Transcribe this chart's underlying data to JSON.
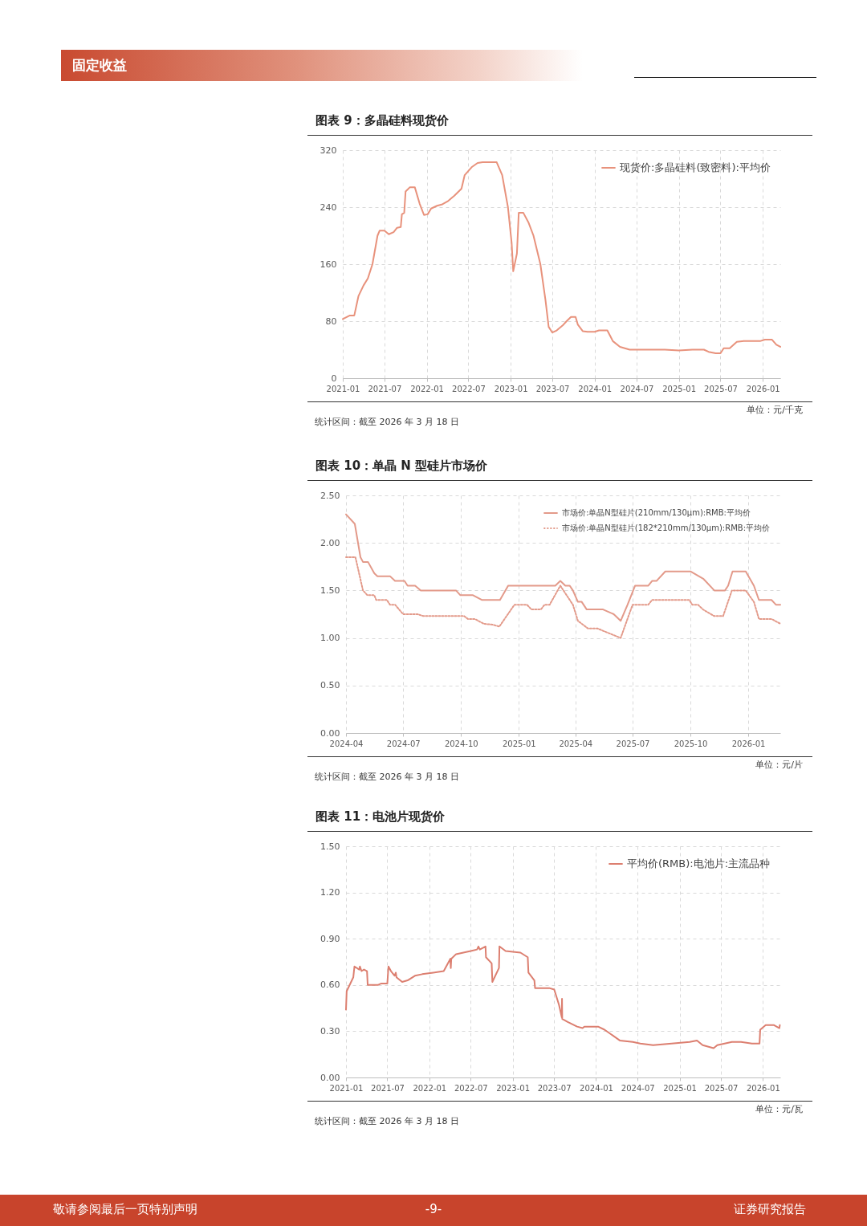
{
  "chart_data": [
    {
      "type": "line",
      "title": "图表 9：多晶硅料现货价",
      "x": [
        "2021-01-01",
        "2021-02-01",
        "2021-02-20",
        "2021-03-10",
        "2021-04-01",
        "2021-04-20",
        "2021-05-10",
        "2021-06-01",
        "2021-06-10",
        "2021-07-01",
        "2021-07-20",
        "2021-08-10",
        "2021-08-25",
        "2021-09-10",
        "2021-09-15",
        "2021-09-25",
        "2021-10-01",
        "2021-10-20",
        "2021-11-10",
        "2021-12-01",
        "2021-12-20",
        "2022-01-05",
        "2022-01-20",
        "2022-02-15",
        "2022-03-10",
        "2022-04-01",
        "2022-05-01",
        "2022-06-01",
        "2022-06-15",
        "2022-07-15",
        "2022-08-10",
        "2022-09-01",
        "2022-10-01",
        "2022-11-01",
        "2022-11-25",
        "2022-12-20",
        "2023-01-05",
        "2023-01-12",
        "2023-01-28",
        "2023-02-05",
        "2023-02-25",
        "2023-03-20",
        "2023-04-10",
        "2023-05-10",
        "2023-06-01",
        "2023-06-15",
        "2023-07-01",
        "2023-07-20",
        "2023-08-15",
        "2023-09-01",
        "2023-09-20",
        "2023-10-10",
        "2023-10-20",
        "2023-11-10",
        "2023-12-01",
        "2024-01-01",
        "2024-01-20",
        "2024-02-25",
        "2024-03-20",
        "2024-04-20",
        "2024-06-01",
        "2024-07-01",
        "2024-09-01",
        "2024-11-01",
        "2025-01-01",
        "2025-03-01",
        "2025-04-20",
        "2025-05-10",
        "2025-06-10",
        "2025-07-01",
        "2025-07-15",
        "2025-08-10",
        "2025-09-10",
        "2025-10-10",
        "2025-12-20",
        "2026-01-10",
        "2026-02-10",
        "2026-03-01",
        "2026-03-18"
      ],
      "series": [
        {
          "name": "现货价:多晶硅料(致密料):平均价",
          "color": "#e8927c",
          "values": [
            83,
            88,
            88,
            115,
            130,
            140,
            160,
            200,
            207,
            207,
            202,
            205,
            211,
            212,
            230,
            232,
            262,
            268,
            268,
            245,
            229,
            230,
            238,
            242,
            244,
            248,
            256,
            266,
            285,
            296,
            302,
            303,
            303,
            303,
            285,
            240,
            190,
            150,
            175,
            232,
            232,
            218,
            200,
            160,
            110,
            72,
            64,
            67,
            74,
            80,
            86,
            86,
            75,
            66,
            65,
            65,
            67,
            67,
            52,
            44,
            40,
            40,
            40,
            40,
            39,
            40,
            40,
            37,
            35,
            35,
            42,
            42,
            51,
            52,
            52,
            54,
            54,
            47,
            44
          ]
        }
      ],
      "xlim": [
        "2021-01-01",
        "2026-03-18"
      ],
      "xticks": [
        "2021-01",
        "2021-07",
        "2022-01",
        "2022-07",
        "2023-01",
        "2023-07",
        "2024-01",
        "2024-07",
        "2025-01",
        "2025-07",
        "2026-01"
      ],
      "ylim": [
        0,
        320
      ],
      "yticks": [
        0,
        80,
        160,
        240,
        320
      ],
      "grid": true,
      "legend": "top right",
      "annotations": [
        "固定收益",
        "统计区间：截至 2026 年 3 月 18 日",
        "单位：元/千克"
      ]
    },
    {
      "type": "line",
      "title": "图表 10：单晶 N 型硅片市场价",
      "series": [
        {
          "name": "市场价:单晶N型硅片(210mm/130μm):RMB:平均价",
          "color": "#e39a8a",
          "line_style": "solid",
          "x": [
            "2024-04-01",
            "2024-04-15",
            "2024-04-24",
            "2024-04-28",
            "2024-05-06",
            "2024-05-16",
            "2024-05-21",
            "2024-06-10",
            "2024-06-18",
            "2024-07-03",
            "2024-07-08",
            "2024-07-20",
            "2024-07-29",
            "2024-09-23",
            "2024-09-30",
            "2024-10-20",
            "2024-11-03",
            "2024-12-02",
            "2024-12-15",
            "2025-02-28",
            "2025-03-08",
            "2025-03-16",
            "2025-03-23",
            "2025-03-28",
            "2025-04-05",
            "2025-04-11",
            "2025-04-19",
            "2025-05-15",
            "2025-06-01",
            "2025-06-12",
            "2025-06-23",
            "2025-07-05",
            "2025-07-26",
            "2025-08-01",
            "2025-08-08",
            "2025-08-22",
            "2025-10-01",
            "2025-10-22",
            "2025-11-08",
            "2025-11-25",
            "2025-11-30",
            "2025-12-07",
            "2025-12-28",
            "2026-01-10",
            "2026-01-18",
            "2026-02-07",
            "2026-02-14",
            "2026-02-21"
          ],
          "values": [
            2.3,
            2.2,
            1.85,
            1.8,
            1.8,
            1.68,
            1.65,
            1.65,
            1.6,
            1.6,
            1.55,
            1.55,
            1.5,
            1.5,
            1.45,
            1.45,
            1.4,
            1.4,
            1.55,
            1.55,
            1.6,
            1.55,
            1.55,
            1.5,
            1.38,
            1.38,
            1.3,
            1.3,
            1.25,
            1.18,
            1.35,
            1.55,
            1.55,
            1.6,
            1.6,
            1.7,
            1.7,
            1.62,
            1.5,
            1.5,
            1.55,
            1.7,
            1.7,
            1.55,
            1.4,
            1.4,
            1.35,
            1.35
          ]
        },
        {
          "name": "市场价:单晶N型硅片(182*210mm/130μm):RMB:平均价",
          "color": "#e39a8a",
          "line_style": "dotted",
          "x": [
            "2024-04-01",
            "2024-04-16",
            "2024-04-28",
            "2024-05-05",
            "2024-05-16",
            "2024-05-19",
            "2024-06-05",
            "2024-06-10",
            "2024-06-18",
            "2024-07-01",
            "2024-07-24",
            "2024-08-02",
            "2024-10-06",
            "2024-10-12",
            "2024-10-23",
            "2024-11-06",
            "2024-11-20",
            "2024-12-01",
            "2024-12-25",
            "2025-01-14",
            "2025-01-21",
            "2025-02-05",
            "2025-02-11",
            "2025-02-19",
            "2025-03-08",
            "2025-03-28",
            "2025-04-05",
            "2025-04-21",
            "2025-05-06",
            "2025-06-12",
            "2025-07-01",
            "2025-07-26",
            "2025-08-01",
            "2025-09-29",
            "2025-10-04",
            "2025-10-13",
            "2025-10-21",
            "2025-11-08",
            "2025-11-22",
            "2025-12-06",
            "2025-12-28",
            "2026-01-10",
            "2026-01-18",
            "2026-02-07",
            "2026-02-21"
          ],
          "values": [
            1.85,
            1.85,
            1.5,
            1.45,
            1.45,
            1.4,
            1.4,
            1.35,
            1.35,
            1.25,
            1.25,
            1.23,
            1.23,
            1.2,
            1.2,
            1.15,
            1.14,
            1.12,
            1.35,
            1.35,
            1.3,
            1.3,
            1.35,
            1.35,
            1.55,
            1.35,
            1.18,
            1.1,
            1.1,
            1.0,
            1.35,
            1.35,
            1.4,
            1.4,
            1.35,
            1.35,
            1.3,
            1.23,
            1.23,
            1.5,
            1.5,
            1.38,
            1.2,
            1.2,
            1.15
          ]
        }
      ],
      "xlim": [
        "2024-04-01",
        "2026-02-21"
      ],
      "xticks": [
        "2024-04",
        "2024-07",
        "2024-10",
        "2025-01",
        "2025-04",
        "2025-07",
        "2025-10",
        "2026-01"
      ],
      "ylim": [
        0,
        2.5
      ],
      "yticks": [
        {
          "value": 0,
          "label": "0.00"
        },
        {
          "value": 0.5,
          "label": "0.50"
        },
        {
          "value": 1,
          "label": "1.00"
        },
        {
          "value": 1.5,
          "label": "1.50"
        },
        {
          "value": 2,
          "label": "2.00"
        },
        {
          "value": 2.5,
          "label": "2.50"
        }
      ],
      "grid": true,
      "legend": "top right",
      "annotations": [
        "统计区间：截至 2026 年 3 月 18 日",
        "单位：元/片"
      ]
    },
    {
      "type": "line",
      "title": "图表 11：电池片现货价",
      "x": [
        "2021-01-01",
        "2021-01-04",
        "2021-02-02",
        "2021-02-07",
        "2021-02-28",
        "2021-03-03",
        "2021-03-10",
        "2021-03-21",
        "2021-04-03",
        "2021-04-06",
        "2021-05-20",
        "2021-06-05",
        "2021-07-01",
        "2021-07-06",
        "2021-07-17",
        "2021-08-02",
        "2021-08-07",
        "2021-08-10",
        "2021-09-04",
        "2021-09-28",
        "2021-10-30",
        "2021-12-01",
        "2022-01-18",
        "2022-03-05",
        "2022-04-03",
        "2022-04-05",
        "2022-04-07",
        "2022-04-28",
        "2022-05-30",
        "2022-07-01",
        "2022-07-29",
        "2022-08-04",
        "2022-08-10",
        "2022-09-04",
        "2022-09-06",
        "2022-10-01",
        "2022-10-04",
        "2022-11-02",
        "2022-11-04",
        "2022-12-01",
        "2023-02-04",
        "2023-03-08",
        "2023-03-11",
        "2023-04-06",
        "2023-04-09",
        "2023-05-19",
        "2023-06-10",
        "2023-07-02",
        "2023-07-23",
        "2023-08-04",
        "2023-08-05",
        "2023-08-06",
        "2023-08-30",
        "2023-10-10",
        "2023-11-03",
        "2023-11-11",
        "2024-01-10",
        "2024-02-07",
        "2024-03-07",
        "2024-04-14",
        "2024-06-10",
        "2024-07-13",
        "2024-09-07",
        "2024-11-27",
        "2025-02-14",
        "2025-03-18",
        "2025-04-12",
        "2025-05-30",
        "2025-06-15",
        "2025-08-18",
        "2025-09-27",
        "2025-11-14",
        "2025-12-17",
        "2025-12-20",
        "2026-01-13",
        "2026-02-17",
        "2026-03-14",
        "2026-03-16"
      ],
      "series": [
        {
          "name": "平均价(RMB):电池片:主流品种",
          "color": "#dc7f70",
          "values": [
            0.44,
            0.56,
            0.65,
            0.72,
            0.7,
            0.72,
            0.69,
            0.7,
            0.69,
            0.6,
            0.6,
            0.61,
            0.61,
            0.72,
            0.69,
            0.66,
            0.68,
            0.65,
            0.62,
            0.63,
            0.66,
            0.67,
            0.68,
            0.69,
            0.77,
            0.71,
            0.77,
            0.8,
            0.81,
            0.82,
            0.83,
            0.85,
            0.83,
            0.85,
            0.78,
            0.74,
            0.62,
            0.71,
            0.85,
            0.82,
            0.81,
            0.78,
            0.68,
            0.63,
            0.58,
            0.58,
            0.58,
            0.57,
            0.47,
            0.39,
            0.51,
            0.38,
            0.36,
            0.33,
            0.32,
            0.33,
            0.33,
            0.31,
            0.28,
            0.24,
            0.23,
            0.22,
            0.21,
            0.22,
            0.23,
            0.24,
            0.21,
            0.19,
            0.21,
            0.23,
            0.23,
            0.22,
            0.22,
            0.31,
            0.34,
            0.34,
            0.32,
            0.34
          ]
        }
      ],
      "xlim": [
        "2021-01-01",
        "2026-03-18"
      ],
      "xticks": [
        "2021-01",
        "2021-07",
        "2022-01",
        "2022-07",
        "2023-01",
        "2023-07",
        "2024-01",
        "2024-07",
        "2025-01",
        "2025-07",
        "2026-01"
      ],
      "ylim": [
        0,
        1.5
      ],
      "yticks": [
        {
          "value": 0,
          "label": "0.00"
        },
        {
          "value": 0.3,
          "label": "0.30"
        },
        {
          "value": 0.6,
          "label": "0.60"
        },
        {
          "value": 0.9,
          "label": "0.90"
        },
        {
          "value": 1.2,
          "label": "1.20"
        },
        {
          "value": 1.5,
          "label": "1.50"
        }
      ],
      "grid": true,
      "legend": "top right",
      "annotations": [
        "统计区间：截至 2026 年 3 月 18 日",
        "单位：元/瓦",
        "敬请参阅最后一页特别声明",
        "-9-",
        "证券研究报告"
      ]
    }
  ]
}
